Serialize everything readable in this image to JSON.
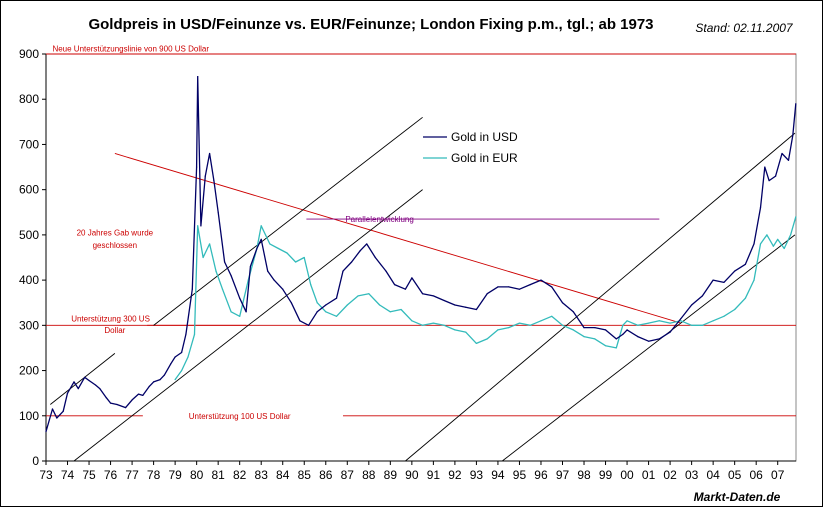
{
  "chart_data": {
    "type": "line",
    "title": "Goldpreis in USD/Feinunze vs. EUR/Feinunze; London Fixing p.m., tgl.; ab 1973",
    "stand": "Stand: 02.11.2007",
    "source": "Markt-Daten.de",
    "ylim": [
      0,
      900
    ],
    "xlim": [
      1973,
      2007.85
    ],
    "yticks": [
      0,
      100,
      200,
      300,
      400,
      500,
      600,
      700,
      800,
      900
    ],
    "year_ticks": [
      1973,
      1974,
      1975,
      1976,
      1977,
      1978,
      1979,
      1980,
      1981,
      1982,
      1983,
      1984,
      1985,
      1986,
      1987,
      1988,
      1989,
      1990,
      1991,
      1992,
      1993,
      1994,
      1995,
      1996,
      1997,
      1998,
      1999,
      2000,
      2001,
      2002,
      2003,
      2004,
      2005,
      2006,
      2007
    ],
    "xtick_labels": [
      "73",
      "74",
      "75",
      "76",
      "77",
      "78",
      "79",
      "80",
      "81",
      "82",
      "83",
      "84",
      "85",
      "86",
      "87",
      "88",
      "89",
      "90",
      "91",
      "92",
      "93",
      "94",
      "95",
      "96",
      "97",
      "98",
      "99",
      "00",
      "01",
      "02",
      "03",
      "04",
      "05",
      "06",
      "07"
    ],
    "legend": [
      "Gold in USD",
      "Gold in EUR"
    ],
    "colors": {
      "usd": "#000066",
      "eur": "#33bbbb",
      "support": "#cc0000",
      "trend": "#000000",
      "parallel": "#800080"
    },
    "series": [
      {
        "name": "Gold in USD",
        "x": [
          1973.0,
          1973.3,
          1973.5,
          1973.8,
          1974.0,
          1974.3,
          1974.5,
          1974.8,
          1975.0,
          1975.3,
          1975.5,
          1975.8,
          1976.0,
          1976.3,
          1976.7,
          1977.0,
          1977.3,
          1977.5,
          1977.8,
          1978.0,
          1978.3,
          1978.5,
          1978.8,
          1979.0,
          1979.3,
          1979.5,
          1979.8,
          1980.0,
          1980.05,
          1980.2,
          1980.4,
          1980.6,
          1980.8,
          1981.0,
          1981.3,
          1981.6,
          1982.0,
          1982.3,
          1982.5,
          1982.8,
          1983.0,
          1983.3,
          1983.6,
          1984.0,
          1984.4,
          1984.8,
          1985.2,
          1985.6,
          1986.0,
          1986.5,
          1986.8,
          1987.2,
          1987.6,
          1987.9,
          1988.3,
          1988.8,
          1989.2,
          1989.7,
          1990.0,
          1990.5,
          1991.0,
          1991.5,
          1992.0,
          1992.5,
          1993.0,
          1993.5,
          1994.0,
          1994.5,
          1995.0,
          1995.5,
          1996.0,
          1996.5,
          1997.0,
          1997.5,
          1998.0,
          1998.5,
          1999.0,
          1999.5,
          1999.8,
          2000.0,
          2000.5,
          2001.0,
          2001.5,
          2002.0,
          2002.5,
          2003.0,
          2003.5,
          2004.0,
          2004.5,
          2005.0,
          2005.5,
          2005.9,
          2006.2,
          2006.4,
          2006.6,
          2006.9,
          2007.2,
          2007.5,
          2007.7,
          2007.84
        ],
        "y": [
          65,
          115,
          95,
          110,
          150,
          175,
          160,
          185,
          178,
          168,
          160,
          140,
          128,
          125,
          118,
          135,
          148,
          145,
          165,
          175,
          180,
          190,
          215,
          230,
          240,
          280,
          380,
          650,
          850,
          520,
          630,
          680,
          620,
          550,
          440,
          410,
          360,
          330,
          430,
          470,
          490,
          420,
          400,
          380,
          350,
          310,
          300,
          330,
          345,
          360,
          420,
          440,
          465,
          480,
          450,
          420,
          390,
          380,
          405,
          370,
          365,
          355,
          345,
          340,
          335,
          370,
          385,
          385,
          380,
          390,
          400,
          385,
          350,
          330,
          295,
          295,
          290,
          270,
          280,
          290,
          275,
          265,
          270,
          285,
          315,
          345,
          365,
          400,
          395,
          420,
          435,
          480,
          560,
          650,
          620,
          630,
          680,
          665,
          720,
          790
        ]
      },
      {
        "name": "Gold in EUR",
        "x": [
          1979.0,
          1979.3,
          1979.6,
          1979.9,
          1980.05,
          1980.3,
          1980.6,
          1980.9,
          1981.2,
          1981.6,
          1982.0,
          1982.4,
          1982.8,
          1983.0,
          1983.4,
          1983.8,
          1984.2,
          1984.6,
          1985.0,
          1985.3,
          1985.6,
          1986.0,
          1986.5,
          1987.0,
          1987.5,
          1988.0,
          1988.5,
          1989.0,
          1989.5,
          1990.0,
          1990.5,
          1991.0,
          1991.5,
          1992.0,
          1992.5,
          1993.0,
          1993.5,
          1994.0,
          1994.5,
          1995.0,
          1995.5,
          1996.0,
          1996.5,
          1997.0,
          1997.5,
          1998.0,
          1998.5,
          1999.0,
          1999.5,
          1999.8,
          2000.0,
          2000.5,
          2001.0,
          2001.5,
          2002.0,
          2002.5,
          2003.0,
          2003.5,
          2004.0,
          2004.5,
          2005.0,
          2005.5,
          2005.9,
          2006.2,
          2006.5,
          2006.8,
          2007.0,
          2007.3,
          2007.6,
          2007.84
        ],
        "y": [
          180,
          200,
          230,
          280,
          520,
          450,
          480,
          420,
          380,
          330,
          320,
          400,
          470,
          520,
          480,
          470,
          460,
          440,
          450,
          390,
          350,
          330,
          320,
          345,
          365,
          370,
          345,
          330,
          335,
          310,
          300,
          305,
          300,
          290,
          285,
          260,
          270,
          290,
          295,
          305,
          300,
          310,
          320,
          300,
          290,
          275,
          270,
          255,
          250,
          300,
          310,
          300,
          305,
          310,
          305,
          310,
          300,
          300,
          310,
          320,
          335,
          360,
          400,
          480,
          500,
          475,
          490,
          470,
          500,
          540
        ]
      }
    ],
    "lines": [
      {
        "id": "resist-900",
        "color": "#cc0000",
        "x1": 1973.0,
        "y1": 900,
        "x2": 2007.85,
        "y2": 900
      },
      {
        "id": "support-300",
        "color": "#cc0000",
        "x1": 1973.0,
        "y1": 300,
        "x2": 1982.3,
        "y2": 300
      },
      {
        "id": "support-300b",
        "color": "#cc0000",
        "x1": 1977.7,
        "y1": 300,
        "x2": 2007.85,
        "y2": 300
      },
      {
        "id": "support-100",
        "color": "#cc0000",
        "x1": 1973.0,
        "y1": 100,
        "x2": 1977.5,
        "y2": 100
      },
      {
        "id": "support-100b",
        "color": "#cc0000",
        "x1": 1986.8,
        "y1": 100,
        "x2": 2007.85,
        "y2": 100
      },
      {
        "id": "downtrend",
        "color": "#cc0000",
        "x1": 1976.2,
        "y1": 680,
        "x2": 2002.5,
        "y2": 305
      },
      {
        "id": "parallel-1",
        "color": "#000000",
        "x1": 1973.2,
        "y1": 125,
        "x2": 1976.2,
        "y2": 238
      },
      {
        "id": "parallel-2",
        "color": "#000000",
        "x1": 1978.0,
        "y1": 300,
        "x2": 1990.5,
        "y2": 760
      },
      {
        "id": "parallel-3",
        "color": "#000000",
        "x1": 1974.3,
        "y1": 0,
        "x2": 1990.5,
        "y2": 600
      },
      {
        "id": "parallel-4",
        "color": "#000000",
        "x1": 1989.7,
        "y1": 0,
        "x2": 2007.8,
        "y2": 725
      },
      {
        "id": "parallel-5",
        "color": "#000000",
        "x1": 1994.2,
        "y1": 0,
        "x2": 2007.8,
        "y2": 500
      },
      {
        "id": "parallel-legend",
        "color": "#800080",
        "x1": 1985.1,
        "y1": 535,
        "x2": 2001.5,
        "y2": 535
      }
    ],
    "annotations": [
      {
        "id": "ann-900",
        "text": "Neue Unterstützungslinie von 900 US Dollar",
        "x": 1973.3,
        "y": 912,
        "cls": "ann",
        "anchor": "start"
      },
      {
        "id": "ann-20jahre-1",
        "text": "20 Jahres Gab wurde",
        "x": 1976.2,
        "y": 505,
        "cls": "ann",
        "anchor": "middle"
      },
      {
        "id": "ann-20jahre-2",
        "text": "geschlossen",
        "x": 1976.2,
        "y": 478,
        "cls": "ann",
        "anchor": "middle"
      },
      {
        "id": "ann-300-1",
        "text": "Unterstützung 300 US",
        "x": 1976.0,
        "y": 315,
        "cls": "ann",
        "anchor": "middle"
      },
      {
        "id": "ann-300-2",
        "text": "Dollar",
        "x": 1976.2,
        "y": 290,
        "cls": "ann",
        "anchor": "middle"
      },
      {
        "id": "ann-100",
        "text": "Unterstützung 100 US Dollar",
        "x": 1982.0,
        "y": 100,
        "cls": "ann",
        "anchor": "middle"
      },
      {
        "id": "ann-parallel",
        "text": "Parallelentwicklung",
        "x": 1988.5,
        "y": 535,
        "cls": "ann-p",
        "anchor": "middle"
      }
    ]
  }
}
